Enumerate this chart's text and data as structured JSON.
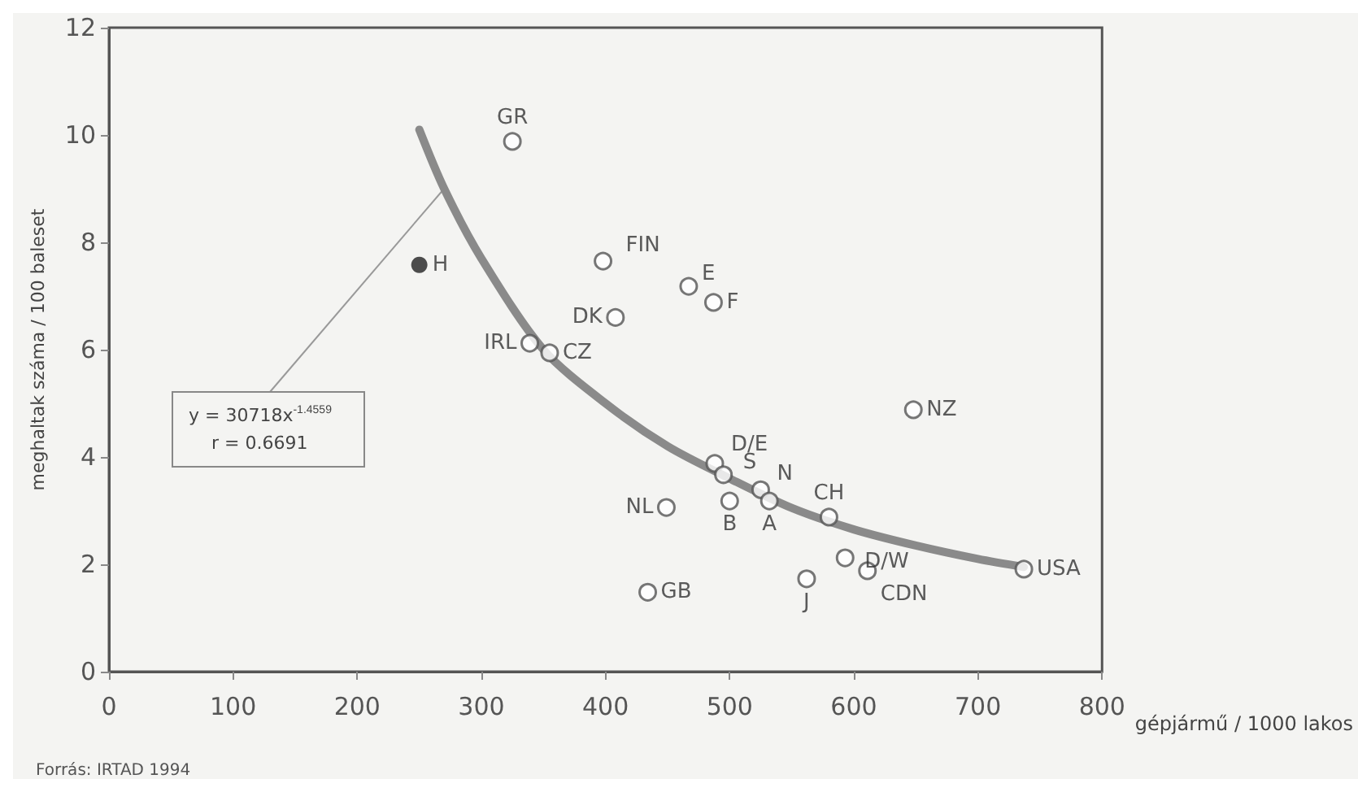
{
  "chart_data": {
    "type": "scatter",
    "xlabel": "gépjármű / 1000 lakos",
    "ylabel": "meghaltak száma / 100 baleset",
    "xlim": [
      0,
      800
    ],
    "xticks": [
      0,
      100,
      200,
      300,
      400,
      500,
      600,
      700,
      800
    ],
    "ylim": [
      0,
      12
    ],
    "yticks": [
      0,
      2,
      4,
      6,
      8,
      10,
      12
    ],
    "grid": false,
    "marker": "circle",
    "series": [
      {
        "color": "#555555",
        "x": [
          325,
          339,
          355,
          408,
          398,
          467,
          487,
          648,
          488,
          495,
          525,
          532,
          500,
          449,
          580,
          593,
          611,
          562,
          434,
          737
        ],
        "values": [
          9.88,
          6.12,
          5.94,
          6.6,
          7.65,
          7.18,
          6.88,
          4.88,
          3.88,
          3.67,
          3.39,
          3.18,
          3.18,
          3.06,
          2.88,
          2.12,
          1.88,
          1.73,
          1.48,
          1.91
        ]
      },
      {
        "color": "#222222",
        "marker": "circle",
        "x": [
          250
        ],
        "values": [
          7.58
        ]
      },
      {
        "type": "line",
        "marker": "none",
        "color": "#8a8a8a",
        "x": [
          250,
          270,
          300,
          350,
          400,
          450,
          500,
          550,
          600,
          650,
          700,
          737
        ],
        "values": [
          10.1,
          9.0,
          7.7,
          6.0,
          5.0,
          4.2,
          3.6,
          3.05,
          2.65,
          2.35,
          2.1,
          1.95
        ]
      }
    ],
    "annotations": [
      {
        "text": "GR",
        "x": 325,
        "y": 9.88
      },
      {
        "text": "H",
        "x": 250,
        "y": 7.58
      },
      {
        "text": "IRL",
        "x": 339,
        "y": 6.12
      },
      {
        "text": "CZ",
        "x": 355,
        "y": 5.94
      },
      {
        "text": "DK",
        "x": 408,
        "y": 6.6
      },
      {
        "text": "FIN",
        "x": 398,
        "y": 7.65
      },
      {
        "text": "E",
        "x": 467,
        "y": 7.18
      },
      {
        "text": "F",
        "x": 487,
        "y": 6.88
      },
      {
        "text": "NZ",
        "x": 648,
        "y": 4.88
      },
      {
        "text": "D/E",
        "x": 488,
        "y": 3.88
      },
      {
        "text": "S",
        "x": 495,
        "y": 3.67
      },
      {
        "text": "N",
        "x": 525,
        "y": 3.39
      },
      {
        "text": "A",
        "x": 532,
        "y": 3.18
      },
      {
        "text": "B",
        "x": 500,
        "y": 3.18
      },
      {
        "text": "NL",
        "x": 449,
        "y": 3.06
      },
      {
        "text": "CH",
        "x": 580,
        "y": 2.88
      },
      {
        "text": "D/W",
        "x": 593,
        "y": 2.12
      },
      {
        "text": "CDN",
        "x": 611,
        "y": 1.88
      },
      {
        "text": "J",
        "x": 562,
        "y": 1.73
      },
      {
        "text": "GB",
        "x": 434,
        "y": 1.48
      },
      {
        "text": "USA",
        "x": 737,
        "y": 1.91
      },
      {
        "text": "y = 30718x$^{-1.4559}$",
        "x": 270,
        "y": 9.0
      },
      "r = 0.6691",
      "Forrás: IRTAD 1994"
    ]
  }
}
